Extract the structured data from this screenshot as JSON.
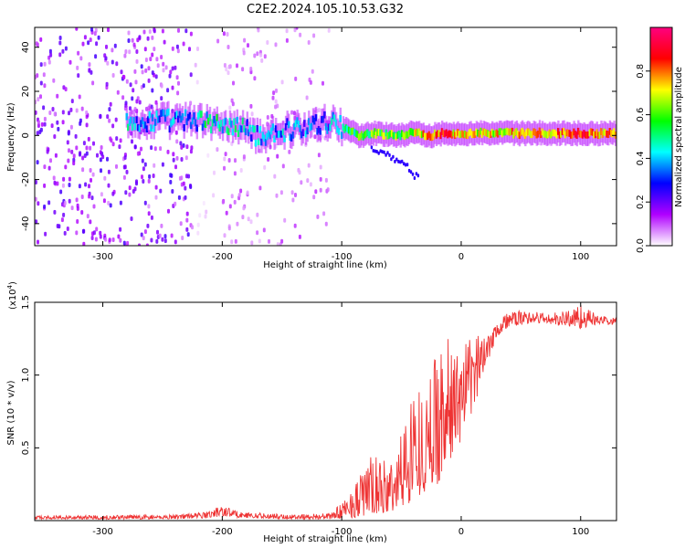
{
  "title": "C2E2.2024.105.10.53.G32",
  "chart_data": [
    {
      "type": "heatmap",
      "xlabel": "Height of straight line (km)",
      "ylabel": "Frequency (Hz)",
      "xlim": [
        -357,
        130
      ],
      "ylim": [
        -50,
        49
      ],
      "xticks": [
        -300,
        -200,
        -100,
        0,
        100
      ],
      "yticks": [
        -40,
        -20,
        0,
        20,
        40
      ],
      "xticklabels": [
        "-300",
        "-200",
        "-100",
        "0",
        "100"
      ],
      "yticklabels": [
        "-40",
        "-20",
        "0",
        "20",
        "40"
      ],
      "colorbar": {
        "label": "Normalized spectral amplitude",
        "range": [
          0,
          1
        ],
        "ticks": [
          "0.0",
          "0.2",
          "0.4",
          "0.6",
          "0.8"
        ],
        "ticks_values": [
          0,
          0.2,
          0.4,
          0.6,
          0.8
        ],
        "colors": [
          "#ffffff",
          "#b000ff",
          "#0000ff",
          "#00ffff",
          "#00ff00",
          "#ffff00",
          "#ff0000",
          "#ff0080"
        ]
      },
      "regions": [
        {
          "x_start": -357,
          "x_end": -225,
          "pattern": "dense broadband noise",
          "level": 0.15
        },
        {
          "x_start": -225,
          "x_end": -205,
          "pattern": "sparse noise",
          "level": 0.03
        },
        {
          "x_start": -205,
          "x_end": -110,
          "pattern": "faint broadband noise",
          "level": 0.08
        },
        {
          "x_start": -110,
          "x_end": 130,
          "pattern": "signal band only",
          "level": 0.0
        }
      ],
      "ridge": [
        {
          "x": -280,
          "f": 5,
          "amp": 0.4
        },
        {
          "x": -250,
          "f": 7,
          "amp": 0.3
        },
        {
          "x": -210,
          "f": 6,
          "amp": 0.45
        },
        {
          "x": -190,
          "f": 4,
          "amp": 0.45
        },
        {
          "x": -170,
          "f": 0,
          "amp": 0.35
        },
        {
          "x": -110,
          "f": 6,
          "amp": 0.35
        },
        {
          "x": -100,
          "f": 4,
          "amp": 0.45
        },
        {
          "x": -85,
          "f": 0,
          "amp": 0.55
        },
        {
          "x": -70,
          "f": 1,
          "amp": 0.6
        },
        {
          "x": -55,
          "f": 0,
          "amp": 0.6
        },
        {
          "x": -40,
          "f": 1,
          "amp": 0.65
        },
        {
          "x": -25,
          "f": 0,
          "amp": 0.75
        },
        {
          "x": -15,
          "f": 1,
          "amp": 0.85
        },
        {
          "x": 0,
          "f": 1,
          "amp": 0.7
        },
        {
          "x": 25,
          "f": 1,
          "amp": 0.7
        },
        {
          "x": 50,
          "f": 1,
          "amp": 0.72
        },
        {
          "x": 75,
          "f": 1,
          "amp": 0.72
        },
        {
          "x": 95,
          "f": 1,
          "amp": 0.85
        },
        {
          "x": 130,
          "f": 1,
          "amp": 0.75
        }
      ],
      "branch": [
        {
          "x": -75,
          "f": -5
        },
        {
          "x": -50,
          "f": -12
        },
        {
          "x": -35,
          "f": -20
        }
      ]
    },
    {
      "type": "line",
      "xlabel": "Height of straight line (km)",
      "ylabel": "SNR (10 * v/v)",
      "y_multiplier": "(x10",
      "y_multiplier_exp": "4",
      "y_multiplier_close": ")",
      "xlim": [
        -357,
        130
      ],
      "ylim": [
        0,
        15000
      ],
      "xticks": [
        -300,
        -200,
        -100,
        0,
        100
      ],
      "xticklabels": [
        "-300",
        "-200",
        "-100",
        "0",
        "100"
      ],
      "yticks": [
        5000,
        10000,
        15000
      ],
      "yticklabels": [
        "0.5",
        "1.0",
        "1.5"
      ],
      "series": [
        {
          "color": "#ee3333",
          "envelope": [
            {
              "x": -357,
              "low": 100,
              "high": 350
            },
            {
              "x": -250,
              "low": 100,
              "high": 400
            },
            {
              "x": -215,
              "low": 150,
              "high": 600
            },
            {
              "x": -200,
              "low": 300,
              "high": 1100
            },
            {
              "x": -185,
              "low": 200,
              "high": 600
            },
            {
              "x": -150,
              "low": 100,
              "high": 450
            },
            {
              "x": -110,
              "low": 100,
              "high": 500
            },
            {
              "x": -100,
              "low": 150,
              "high": 1200
            },
            {
              "x": -90,
              "low": 200,
              "high": 2500
            },
            {
              "x": -75,
              "low": 300,
              "high": 4500
            },
            {
              "x": -60,
              "low": 500,
              "high": 4000
            },
            {
              "x": -50,
              "low": 700,
              "high": 6200
            },
            {
              "x": -40,
              "low": 1500,
              "high": 9800
            },
            {
              "x": -30,
              "low": 2000,
              "high": 8500
            },
            {
              "x": -20,
              "low": 2500,
              "high": 12500
            },
            {
              "x": -10,
              "low": 4000,
              "high": 12500
            },
            {
              "x": 0,
              "low": 5500,
              "high": 12000
            },
            {
              "x": 10,
              "low": 7500,
              "high": 12600
            },
            {
              "x": 20,
              "low": 10500,
              "high": 13300
            },
            {
              "x": 30,
              "low": 12600,
              "high": 14000
            },
            {
              "x": 40,
              "low": 13300,
              "high": 14400
            },
            {
              "x": 60,
              "low": 13600,
              "high": 14400
            },
            {
              "x": 80,
              "low": 13400,
              "high": 14300
            },
            {
              "x": 100,
              "low": 13200,
              "high": 14900
            },
            {
              "x": 115,
              "low": 13500,
              "high": 14100
            },
            {
              "x": 130,
              "low": 13400,
              "high": 14000
            }
          ]
        }
      ]
    }
  ]
}
